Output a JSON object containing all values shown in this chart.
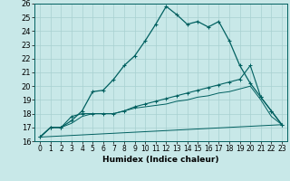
{
  "xlabel": "Humidex (Indice chaleur)",
  "background_color": "#c8e8e8",
  "grid_color": "#a8d0d0",
  "line_color": "#006060",
  "xlim": [
    -0.5,
    23.5
  ],
  "ylim": [
    16,
    26
  ],
  "xticks": [
    0,
    1,
    2,
    3,
    4,
    5,
    6,
    7,
    8,
    9,
    10,
    11,
    12,
    13,
    14,
    15,
    16,
    17,
    18,
    19,
    20,
    21,
    22,
    23
  ],
  "yticks": [
    16,
    17,
    18,
    19,
    20,
    21,
    22,
    23,
    24,
    25,
    26
  ],
  "line1_x": [
    0,
    1,
    2,
    3,
    4,
    5,
    6,
    7,
    8,
    9,
    10,
    11,
    12,
    13,
    14,
    15,
    16,
    17,
    18,
    19,
    20,
    21,
    22,
    23
  ],
  "line1_y": [
    16.3,
    17.0,
    17.0,
    17.5,
    18.2,
    19.6,
    19.7,
    20.5,
    21.5,
    22.2,
    23.3,
    24.5,
    25.8,
    25.2,
    24.5,
    24.7,
    24.3,
    24.7,
    23.3,
    21.5,
    20.2,
    19.2,
    18.2,
    17.2
  ],
  "line2_x": [
    0,
    1,
    2,
    3,
    4,
    5,
    6,
    7,
    8,
    9,
    10,
    11,
    12,
    13,
    14,
    15,
    16,
    17,
    18,
    19,
    20,
    21,
    22,
    23
  ],
  "line2_y": [
    16.3,
    17.0,
    17.0,
    17.8,
    18.0,
    18.0,
    18.0,
    18.0,
    18.2,
    18.5,
    18.7,
    18.9,
    19.1,
    19.3,
    19.5,
    19.7,
    19.9,
    20.1,
    20.3,
    20.5,
    21.5,
    19.2,
    18.2,
    17.2
  ],
  "line3_x": [
    0,
    1,
    2,
    3,
    4,
    5,
    6,
    7,
    8,
    9,
    10,
    11,
    12,
    13,
    14,
    15,
    16,
    17,
    18,
    19,
    20,
    21,
    22,
    23
  ],
  "line3_y": [
    16.3,
    17.0,
    17.0,
    17.3,
    17.8,
    18.0,
    18.0,
    18.0,
    18.2,
    18.4,
    18.5,
    18.6,
    18.7,
    18.9,
    19.0,
    19.2,
    19.3,
    19.5,
    19.6,
    19.8,
    20.0,
    19.0,
    17.8,
    17.2
  ],
  "line4_x": [
    0,
    23
  ],
  "line4_y": [
    16.3,
    17.2
  ]
}
